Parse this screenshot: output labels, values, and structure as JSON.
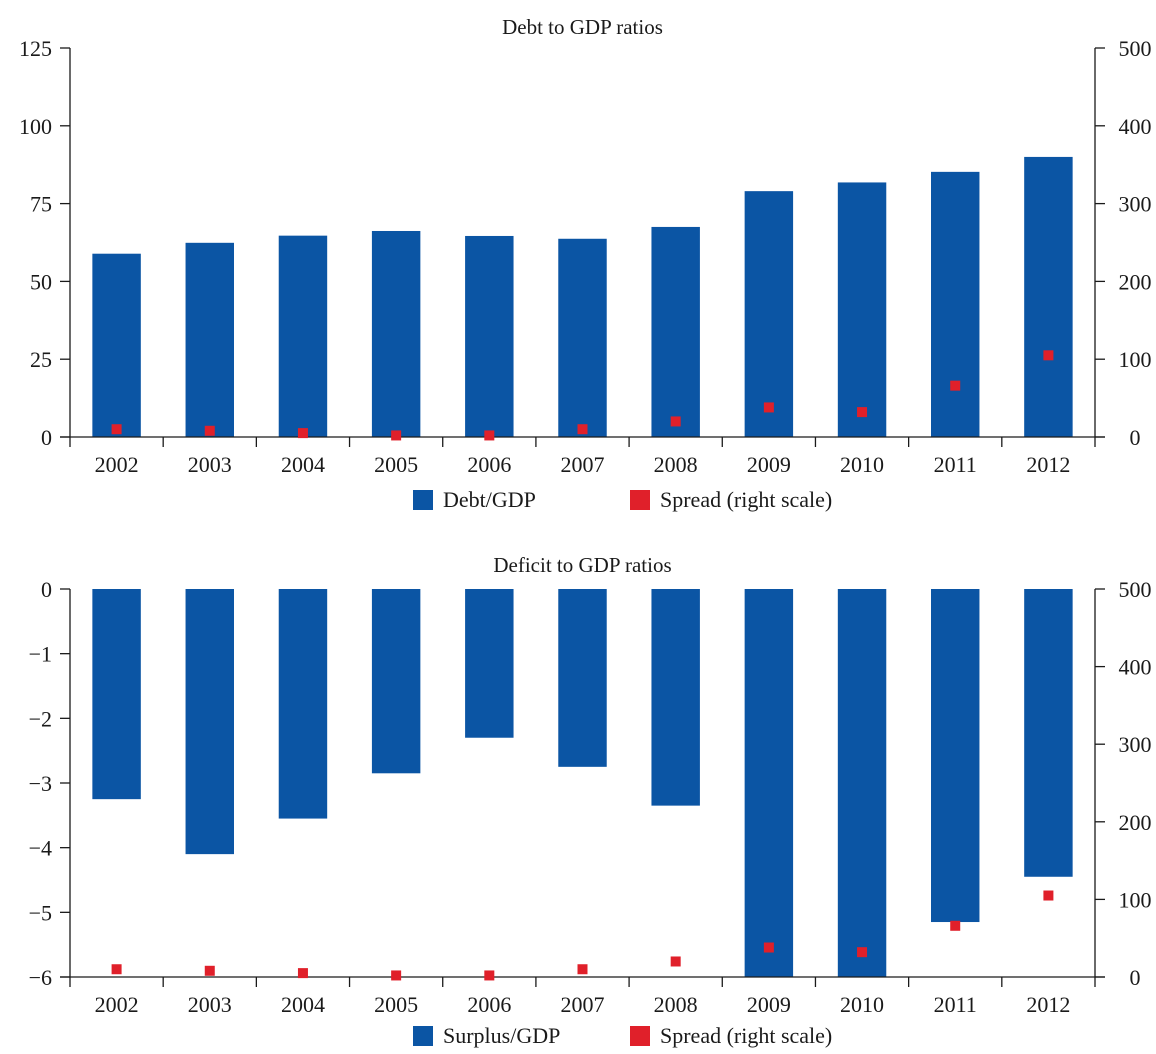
{
  "colors": {
    "bar": "#0b55a4",
    "marker": "#e0202a",
    "axis": "#1a1a1a"
  },
  "chart_data": [
    {
      "id": "debt",
      "type": "bar",
      "title": "Debt to GDP ratios",
      "categories": [
        "2002",
        "2003",
        "2004",
        "2005",
        "2006",
        "2007",
        "2008",
        "2009",
        "2010",
        "2011",
        "2012"
      ],
      "ylim": [
        0,
        125
      ],
      "yticks": [
        "0",
        "25",
        "50",
        "75",
        "100",
        "125"
      ],
      "y2lim": [
        0,
        500
      ],
      "y2ticks": [
        "0",
        "100",
        "200",
        "300",
        "400",
        "500"
      ],
      "legend_position": "bottom-center",
      "grid": false,
      "series": [
        {
          "name": "Debt/GDP",
          "kind": "bar",
          "axis": "left",
          "values": [
            58.9,
            62.4,
            64.7,
            66.2,
            64.6,
            63.7,
            67.5,
            79.0,
            81.8,
            85.2,
            90.0
          ]
        },
        {
          "name": "Spread (right scale)",
          "kind": "marker",
          "axis": "right",
          "values": [
            10,
            8,
            5,
            2,
            2,
            10,
            20,
            38,
            32,
            66,
            105
          ]
        }
      ]
    },
    {
      "id": "deficit",
      "type": "bar",
      "title": "Deficit to GDP ratios",
      "categories": [
        "2002",
        "2003",
        "2004",
        "2005",
        "2006",
        "2007",
        "2008",
        "2009",
        "2010",
        "2011",
        "2012"
      ],
      "ylim": [
        -6,
        0
      ],
      "yticks": [
        "−6",
        "−5",
        "−4",
        "−3",
        "−2",
        "−1",
        "0"
      ],
      "y2lim": [
        0,
        500
      ],
      "y2ticks": [
        "0",
        "100",
        "200",
        "300",
        "400",
        "500"
      ],
      "legend_position": "bottom-center",
      "grid": false,
      "series": [
        {
          "name": "Surplus/GDP",
          "kind": "bar",
          "axis": "left",
          "values": [
            -3.25,
            -4.1,
            -3.55,
            -2.85,
            -2.3,
            -2.75,
            -3.35,
            -6.0,
            -6.0,
            -5.15,
            -4.45
          ]
        },
        {
          "name": "Spread (right scale)",
          "kind": "marker",
          "axis": "right",
          "values": [
            10,
            8,
            5,
            2,
            2,
            10,
            20,
            38,
            32,
            66,
            105
          ]
        }
      ]
    }
  ]
}
